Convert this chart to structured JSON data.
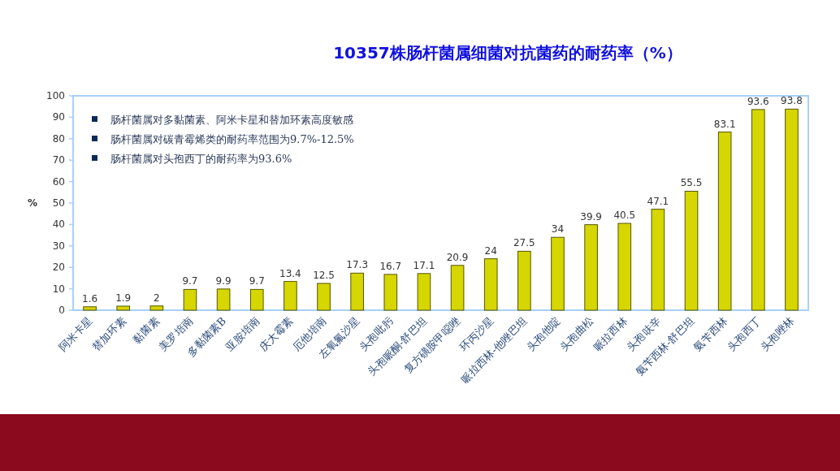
{
  "chart_data": {
    "type": "bar",
    "title": "10357株肠杆菌属细菌对抗菌药的耐药率（%）",
    "ylabel": "%",
    "categories": [
      "阿米卡星",
      "替加环素",
      "黏菌素",
      "美罗培南",
      "多黏菌素B",
      "亚胺培南",
      "庆大霉素",
      "厄他培南",
      "左氧氟沙星",
      "头孢吡肟",
      "头孢哌酮-舒巴坦",
      "复方磺胺甲噁唑",
      "环丙沙星",
      "哌拉西林-他唑巴坦",
      "头孢他啶",
      "头孢曲松",
      "哌拉西林",
      "头孢呋辛",
      "氨苄西林-舒巴坦",
      "氨苄西林",
      "头孢西丁",
      "头孢唑林"
    ],
    "values": [
      1.6,
      1.9,
      2,
      9.7,
      9.9,
      9.7,
      13.4,
      12.5,
      17.3,
      16.7,
      17.1,
      20.9,
      24,
      27.5,
      34,
      39.9,
      40.5,
      47.1,
      55.5,
      83.1,
      93.6,
      93.8
    ],
    "color": "#d6d600",
    "data_labels": true,
    "grid": false,
    "ylim": [
      0,
      100
    ],
    "yticks": [
      0,
      10,
      20,
      30,
      40,
      50,
      60,
      70,
      80,
      90,
      100
    ],
    "annotations": [
      "肠杆菌属对多黏菌素、阿米卡星和替加环素高度敏感",
      "肠杆菌属对碳青霉烯类的耐药率范围为9.7%-12.5%",
      "肠杆菌属对头孢西丁的耐药率为93.6%"
    ]
  }
}
